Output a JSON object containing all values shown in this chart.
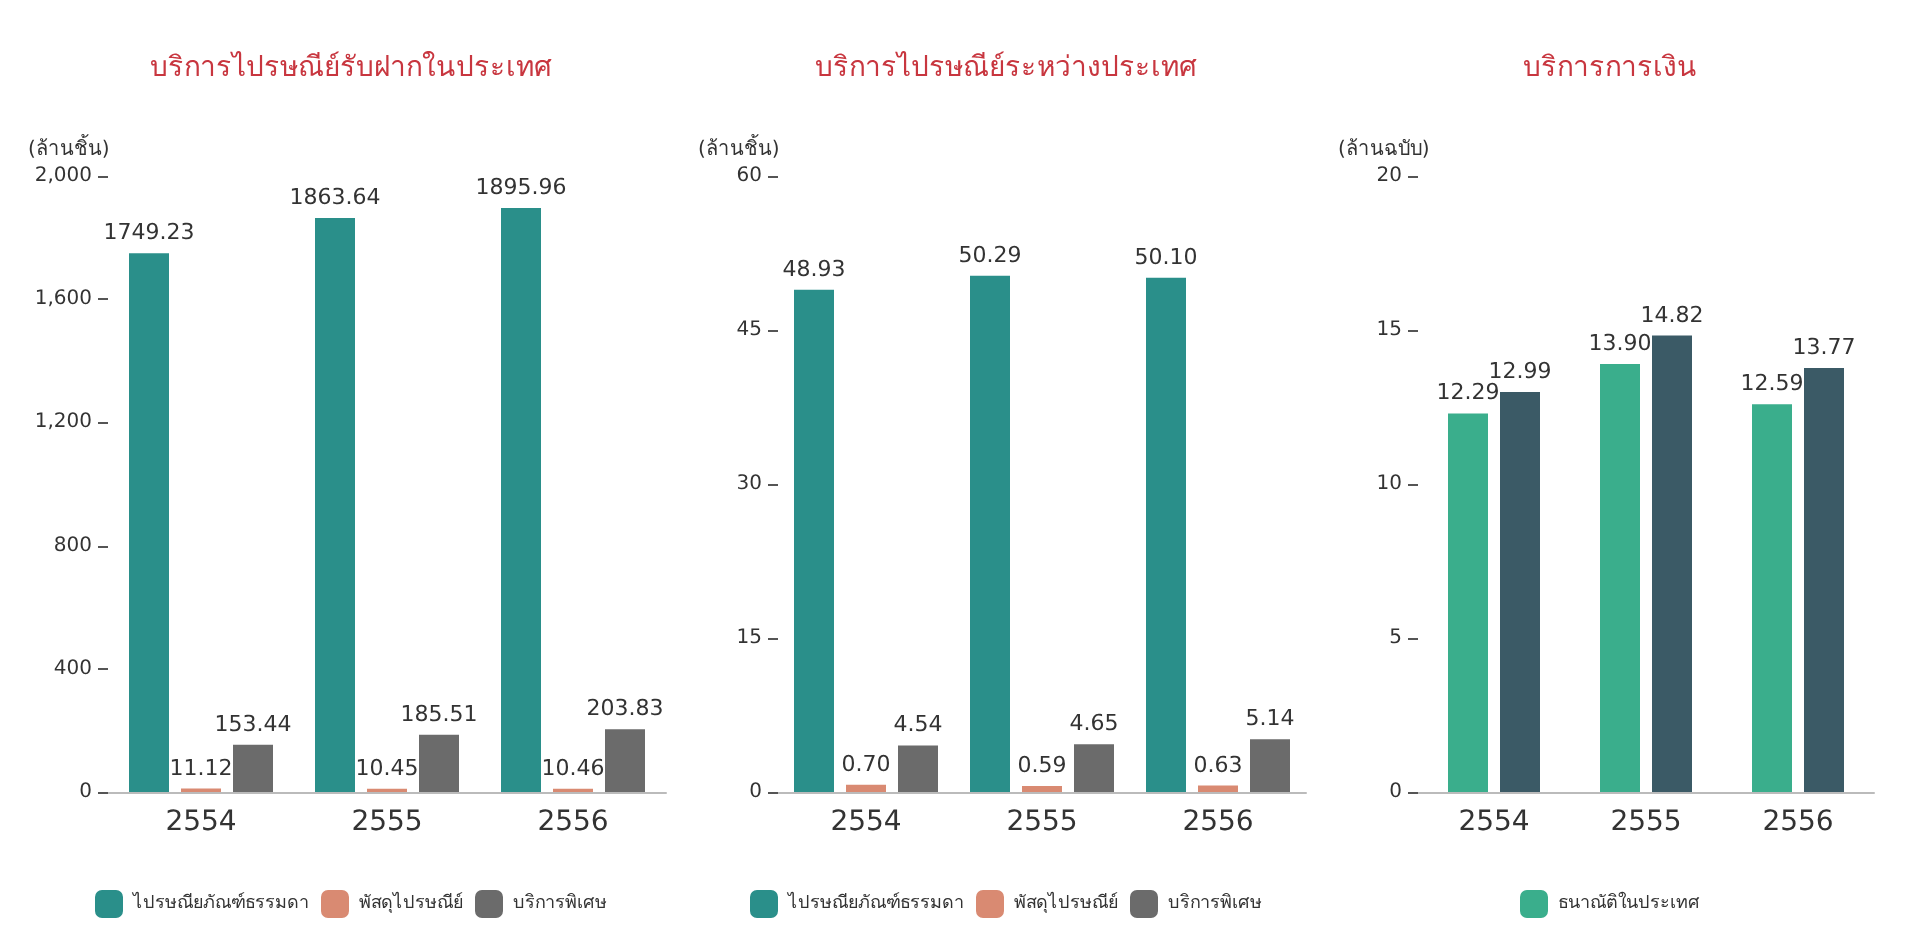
{
  "chart_data": [
    {
      "type": "bar",
      "title": "บริการไปรษณีย์รับฝากในประเทศ",
      "ylabel": "(ล้านชิ้น)",
      "categories": [
        "2554",
        "2555",
        "2556"
      ],
      "series": [
        {
          "name": "ไปรษณียภัณฑ์ธรรมดา",
          "color": "#2a8f8a",
          "values": [
            1749.23,
            1863.64,
            1895.96
          ],
          "value_labels": [
            "1749.23",
            "1863.64",
            "1895.96"
          ]
        },
        {
          "name": "พัสดุไปรษณีย์",
          "color": "#d98a72",
          "values": [
            11.12,
            10.45,
            10.46
          ],
          "value_labels": [
            "11.12",
            "10.45",
            "10.46"
          ]
        },
        {
          "name": "บริการพิเศษ",
          "color": "#6b6b6b",
          "values": [
            153.44,
            185.51,
            203.83
          ],
          "value_labels": [
            "153.44",
            "185.51",
            "203.83"
          ]
        }
      ],
      "ylim": [
        0,
        2000
      ],
      "yticks": [
        0,
        400,
        800,
        {
          "value": 1200,
          "label": "1,200"
        },
        {
          "value": 1600,
          "label": "1,600"
        },
        {
          "value": 2000,
          "label": "2,000"
        }
      ],
      "grid": false,
      "legend": "bottom"
    },
    {
      "type": "bar",
      "title": "บริการไปรษณีย์ระหว่างประเทศ",
      "ylabel": "(ล้านชิ้น)",
      "categories": [
        "2554",
        "2555",
        "2556"
      ],
      "series": [
        {
          "name": "ไปรษณียภัณฑ์ธรรมดา",
          "color": "#2a8f8a",
          "values": [
            48.93,
            50.29,
            50.1
          ],
          "value_labels": [
            "48.93",
            "50.29",
            "50.10"
          ]
        },
        {
          "name": "พัสดุไปรษณีย์",
          "color": "#d98a72",
          "values": [
            0.7,
            0.59,
            0.63
          ],
          "value_labels": [
            "0.70",
            "0.59",
            "0.63"
          ]
        },
        {
          "name": "บริการพิเศษ",
          "color": "#6b6b6b",
          "values": [
            4.54,
            4.65,
            5.14
          ],
          "value_labels": [
            "4.54",
            "4.65",
            "5.14"
          ]
        }
      ],
      "ylim": [
        0,
        60
      ],
      "yticks": [
        0,
        15,
        30,
        45,
        60
      ],
      "grid": false,
      "legend": "bottom"
    },
    {
      "type": "bar",
      "title": "บริการการเงิน",
      "ylabel": "(ล้านฉบับ)",
      "categories": [
        "2554",
        "2555",
        "2556"
      ],
      "series": [
        {
          "name": "ธนาณัติในประเทศ",
          "color": "#3aae8c",
          "values": [
            12.29,
            13.9,
            12.59
          ],
          "value_labels": [
            "12.29",
            "13.90",
            "12.59"
          ]
        },
        {
          "color": "#3b5a66",
          "values": [
            12.99,
            14.82,
            13.77
          ],
          "value_labels": [
            "12.99",
            "14.82",
            "13.77"
          ]
        }
      ],
      "ylim": [
        0,
        20
      ],
      "yticks": [
        0,
        5,
        10,
        15,
        20
      ],
      "grid": false,
      "legend": "bottom"
    }
  ]
}
